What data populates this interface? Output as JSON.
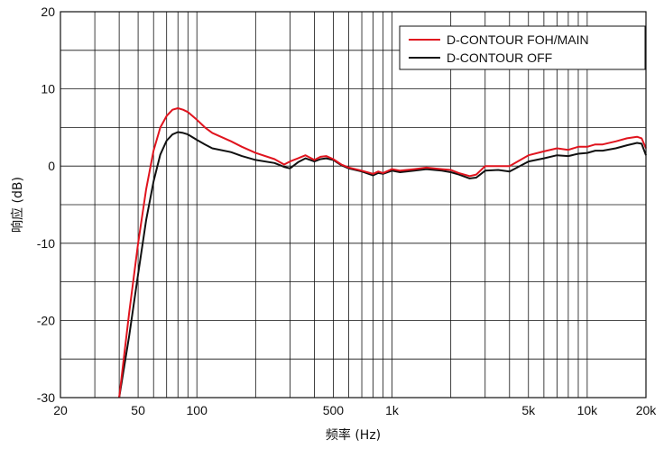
{
  "chart_data": {
    "type": "line",
    "title": "",
    "xlabel": "频率 (Hz)",
    "ylabel": "响应 (dB)",
    "xscale": "log",
    "xlim": [
      20,
      20000
    ],
    "ylim": [
      -30,
      20
    ],
    "grid": true,
    "legend_position": "top-right",
    "x_ticks": [
      {
        "value": 20,
        "label": "20"
      },
      {
        "value": 50,
        "label": "50"
      },
      {
        "value": 100,
        "label": "100"
      },
      {
        "value": 500,
        "label": "500"
      },
      {
        "value": 1000,
        "label": "1k"
      },
      {
        "value": 5000,
        "label": "5k"
      },
      {
        "value": 10000,
        "label": "10k"
      },
      {
        "value": 20000,
        "label": "20k"
      }
    ],
    "y_ticks": [
      {
        "value": 20,
        "label": "20"
      },
      {
        "value": 10,
        "label": "10"
      },
      {
        "value": 0,
        "label": "0"
      },
      {
        "value": -10,
        "label": "-10"
      },
      {
        "value": -20,
        "label": "-20"
      },
      {
        "value": -30,
        "label": "-30"
      }
    ],
    "series": [
      {
        "name": "D-CONTOUR FOH/MAIN",
        "color": "#e0141e",
        "x": [
          40,
          45,
          50,
          55,
          60,
          65,
          70,
          75,
          80,
          85,
          90,
          100,
          110,
          120,
          150,
          170,
          200,
          250,
          280,
          300,
          330,
          360,
          400,
          430,
          460,
          500,
          550,
          600,
          700,
          800,
          850,
          900,
          1000,
          1100,
          1300,
          1500,
          1800,
          2000,
          2200,
          2500,
          2700,
          3000,
          3500,
          4000,
          5000,
          6000,
          7000,
          8000,
          9000,
          10000,
          11000,
          12000,
          14000,
          16000,
          18000,
          19000,
          20000
        ],
        "y": [
          -30,
          -19,
          -10,
          -3,
          2,
          5,
          6.5,
          7.3,
          7.5,
          7.3,
          7,
          6,
          5,
          4.3,
          3.2,
          2.5,
          1.7,
          0.9,
          0.2,
          0.6,
          1,
          1.4,
          0.8,
          1.2,
          1.3,
          0.9,
          0.2,
          -0.2,
          -0.6,
          -1,
          -0.7,
          -0.9,
          -0.4,
          -0.6,
          -0.4,
          -0.2,
          -0.4,
          -0.5,
          -0.9,
          -1.3,
          -1.1,
          0,
          0,
          0,
          1.4,
          1.9,
          2.3,
          2.1,
          2.5,
          2.5,
          2.8,
          2.8,
          3.2,
          3.6,
          3.8,
          3.6,
          2.3
        ]
      },
      {
        "name": "D-CONTOUR OFF",
        "color": "#111111",
        "x": [
          40,
          45,
          50,
          55,
          60,
          65,
          70,
          75,
          80,
          85,
          90,
          100,
          110,
          120,
          150,
          170,
          200,
          250,
          280,
          300,
          330,
          360,
          400,
          430,
          460,
          500,
          550,
          600,
          700,
          800,
          850,
          900,
          1000,
          1100,
          1300,
          1500,
          1800,
          2000,
          2200,
          2500,
          2700,
          3000,
          3500,
          4000,
          5000,
          6000,
          7000,
          8000,
          9000,
          10000,
          11000,
          12000,
          14000,
          16000,
          18000,
          19000,
          20000
        ],
        "y": [
          -30,
          -22,
          -14,
          -7,
          -2,
          1.5,
          3.3,
          4.1,
          4.4,
          4.3,
          4.1,
          3.4,
          2.8,
          2.3,
          1.8,
          1.3,
          0.8,
          0.4,
          -0.1,
          -0.3,
          0.5,
          1,
          0.6,
          0.9,
          1,
          0.8,
          0.1,
          -0.3,
          -0.7,
          -1.2,
          -0.9,
          -1,
          -0.6,
          -0.8,
          -0.6,
          -0.4,
          -0.6,
          -0.8,
          -1.1,
          -1.6,
          -1.5,
          -0.6,
          -0.5,
          -0.7,
          0.6,
          1,
          1.4,
          1.3,
          1.6,
          1.7,
          2,
          2,
          2.3,
          2.7,
          3,
          2.9,
          1.4
        ]
      }
    ]
  }
}
